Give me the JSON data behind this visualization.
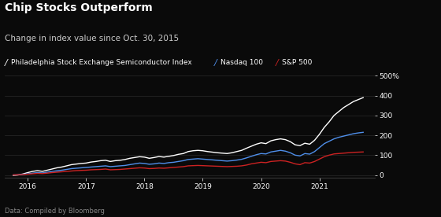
{
  "title": "Chip Stocks Outperform",
  "subtitle": "Change in index value since Oct. 30, 2015",
  "footnote": "Data: Compiled by Bloomberg",
  "background_color": "#0a0a0a",
  "text_color": "#ffffff",
  "subtitle_color": "#cccccc",
  "footnote_color": "#888888",
  "grid_color": "#2a2a2a",
  "spine_color": "#444444",
  "legend": [
    {
      "label": "Philadelphia Stock Exchange Semiconductor Index",
      "color": "#ffffff"
    },
    {
      "label": "Nasdaq 100",
      "color": "#4f8fea"
    },
    {
      "label": "S&P 500",
      "color": "#cc2222"
    }
  ],
  "ylim": [
    -15,
    510
  ],
  "yticks": [
    0,
    100,
    200,
    300,
    400,
    500
  ],
  "ytick_labels": [
    "0",
    "100",
    "200",
    "300",
    "400",
    "500%"
  ],
  "xlabel_years": [
    "2016",
    "2017",
    "2018",
    "2019",
    "2020",
    "2021"
  ],
  "year_positions": [
    0.25,
    1.25,
    2.25,
    3.25,
    4.25,
    5.25
  ],
  "xlim": [
    -0.15,
    6.2
  ],
  "sox_x": [
    0.0,
    0.083,
    0.167,
    0.25,
    0.333,
    0.417,
    0.5,
    0.583,
    0.667,
    0.75,
    0.833,
    0.917,
    1.0,
    1.083,
    1.167,
    1.25,
    1.333,
    1.417,
    1.5,
    1.583,
    1.667,
    1.75,
    1.833,
    1.917,
    2.0,
    2.083,
    2.167,
    2.25,
    2.333,
    2.417,
    2.5,
    2.583,
    2.667,
    2.75,
    2.833,
    2.917,
    3.0,
    3.083,
    3.167,
    3.25,
    3.333,
    3.417,
    3.5,
    3.583,
    3.667,
    3.75,
    3.833,
    3.917,
    4.0,
    4.083,
    4.167,
    4.25,
    4.333,
    4.417,
    4.5,
    4.583,
    4.667,
    4.75,
    4.833,
    4.917,
    5.0,
    5.083,
    5.167,
    5.25,
    5.333,
    5.417,
    5.5,
    5.583,
    5.667,
    5.75,
    5.833,
    5.917,
    6.0
  ],
  "sox_y": [
    -2,
    0,
    5,
    12,
    18,
    22,
    18,
    24,
    30,
    36,
    40,
    46,
    52,
    55,
    58,
    60,
    65,
    68,
    72,
    74,
    68,
    72,
    74,
    78,
    84,
    88,
    92,
    90,
    84,
    88,
    93,
    90,
    94,
    98,
    104,
    108,
    118,
    122,
    124,
    122,
    118,
    115,
    112,
    110,
    108,
    112,
    118,
    124,
    135,
    145,
    155,
    162,
    158,
    172,
    178,
    182,
    178,
    168,
    152,
    148,
    160,
    155,
    175,
    205,
    240,
    268,
    300,
    320,
    340,
    355,
    370,
    380,
    390
  ],
  "ndx_x": [
    0.0,
    0.083,
    0.167,
    0.25,
    0.333,
    0.417,
    0.5,
    0.583,
    0.667,
    0.75,
    0.833,
    0.917,
    1.0,
    1.083,
    1.167,
    1.25,
    1.333,
    1.417,
    1.5,
    1.583,
    1.667,
    1.75,
    1.833,
    1.917,
    2.0,
    2.083,
    2.167,
    2.25,
    2.333,
    2.417,
    2.5,
    2.583,
    2.667,
    2.75,
    2.833,
    2.917,
    3.0,
    3.083,
    3.167,
    3.25,
    3.333,
    3.417,
    3.5,
    3.583,
    3.667,
    3.75,
    3.833,
    3.917,
    4.0,
    4.083,
    4.167,
    4.25,
    4.333,
    4.417,
    4.5,
    4.583,
    4.667,
    4.75,
    4.833,
    4.917,
    5.0,
    5.083,
    5.167,
    5.25,
    5.333,
    5.417,
    5.5,
    5.583,
    5.667,
    5.75,
    5.833,
    5.917,
    6.0
  ],
  "ndx_y": [
    0,
    1,
    3,
    6,
    9,
    12,
    10,
    14,
    18,
    21,
    24,
    28,
    32,
    34,
    36,
    38,
    40,
    42,
    44,
    46,
    42,
    44,
    46,
    48,
    52,
    56,
    60,
    58,
    54,
    56,
    60,
    58,
    62,
    64,
    68,
    72,
    78,
    80,
    82,
    80,
    78,
    76,
    74,
    72,
    70,
    72,
    75,
    79,
    86,
    94,
    102,
    108,
    106,
    116,
    120,
    124,
    120,
    112,
    100,
    96,
    108,
    105,
    118,
    138,
    158,
    170,
    182,
    190,
    196,
    202,
    208,
    212,
    215
  ],
  "sp500_x": [
    0.0,
    0.083,
    0.167,
    0.25,
    0.333,
    0.417,
    0.5,
    0.583,
    0.667,
    0.75,
    0.833,
    0.917,
    1.0,
    1.083,
    1.167,
    1.25,
    1.333,
    1.417,
    1.5,
    1.583,
    1.667,
    1.75,
    1.833,
    1.917,
    2.0,
    2.083,
    2.167,
    2.25,
    2.333,
    2.417,
    2.5,
    2.583,
    2.667,
    2.75,
    2.833,
    2.917,
    3.0,
    3.083,
    3.167,
    3.25,
    3.333,
    3.417,
    3.5,
    3.583,
    3.667,
    3.75,
    3.833,
    3.917,
    4.0,
    4.083,
    4.167,
    4.25,
    4.333,
    4.417,
    4.5,
    4.583,
    4.667,
    4.75,
    4.833,
    4.917,
    5.0,
    5.083,
    5.167,
    5.25,
    5.333,
    5.417,
    5.5,
    5.583,
    5.667,
    5.75,
    5.833,
    5.917,
    6.0
  ],
  "sp500_y": [
    0,
    1,
    2,
    4,
    6,
    8,
    7,
    9,
    12,
    14,
    16,
    18,
    20,
    22,
    23,
    24,
    26,
    27,
    28,
    30,
    26,
    27,
    28,
    30,
    32,
    34,
    36,
    35,
    32,
    33,
    35,
    34,
    36,
    38,
    40,
    42,
    46,
    47,
    48,
    47,
    46,
    45,
    44,
    43,
    42,
    43,
    44,
    46,
    50,
    56,
    60,
    64,
    62,
    68,
    70,
    72,
    70,
    64,
    56,
    52,
    62,
    60,
    68,
    80,
    92,
    100,
    106,
    108,
    110,
    112,
    114,
    115,
    116
  ]
}
